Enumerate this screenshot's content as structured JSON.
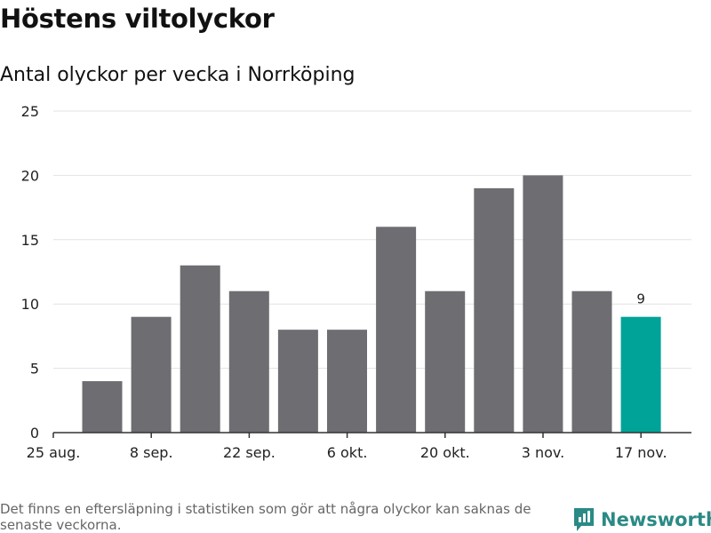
{
  "title": "Höstens viltolyckor",
  "subtitle": "Antal olyckor per vecka i Norrköping",
  "footnote": "Det finns en eftersläpning i statistiken som gör att några olyckor kan saknas de senaste veckorna.",
  "brand": "Newsworthy",
  "colors": {
    "bar": "#6d6d72",
    "highlight": "#00a398",
    "grid": "#e2e2e2",
    "axis": "#333333",
    "brand": "#2a8a85"
  },
  "chart_data": {
    "type": "bar",
    "values": [
      4,
      9,
      13,
      11,
      8,
      8,
      16,
      11,
      19,
      20,
      11,
      9
    ],
    "highlight_index": 11,
    "highlight_label": "9",
    "x_tick_labels": [
      "25 aug.",
      "8 sep.",
      "22 sep.",
      "6 okt.",
      "20 okt.",
      "3 nov.",
      "17 nov."
    ],
    "y_ticks": [
      "0",
      "5",
      "10",
      "15",
      "20",
      "25"
    ],
    "ylim": [
      0,
      25
    ],
    "grid": true
  }
}
